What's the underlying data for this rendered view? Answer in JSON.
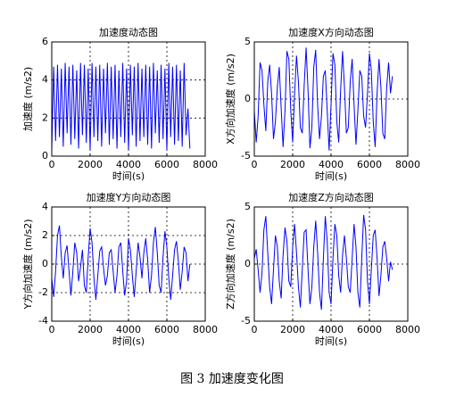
{
  "chart_data": [
    {
      "type": "line",
      "title": "加速度动态图",
      "xlabel": "时间(s)",
      "ylabel": "加速度 (m/s2)",
      "xlim": [
        0,
        8000
      ],
      "xticks": [
        0,
        2000,
        4000,
        6000,
        8000
      ],
      "ylim": [
        0,
        6
      ],
      "yticks": [
        0,
        2,
        4,
        6
      ],
      "grid": true,
      "color": "#0000ff",
      "x": [
        0,
        100,
        200,
        300,
        400,
        500,
        600,
        700,
        800,
        900,
        1000,
        1100,
        1200,
        1300,
        1400,
        1500,
        1600,
        1700,
        1800,
        1900,
        2000,
        2100,
        2200,
        2300,
        2400,
        2500,
        2600,
        2700,
        2800,
        2900,
        3000,
        3100,
        3200,
        3300,
        3400,
        3500,
        3600,
        3700,
        3800,
        3900,
        4000,
        4100,
        4200,
        4300,
        4400,
        4500,
        4600,
        4700,
        4800,
        4900,
        5000,
        5100,
        5200,
        5300,
        5400,
        5500,
        5600,
        5700,
        5800,
        5900,
        6000,
        6100,
        6200,
        6300,
        6400,
        6500,
        6600,
        6700,
        6800,
        6900,
        7000,
        7100,
        7200
      ],
      "values": [
        0.3,
        4.7,
        0.8,
        4.8,
        1.0,
        4.6,
        0.5,
        4.9,
        1.2,
        4.7,
        0.6,
        4.8,
        0.9,
        4.5,
        0.4,
        4.9,
        1.1,
        4.8,
        0.7,
        4.6,
        0.3,
        4.9,
        1.0,
        4.7,
        0.8,
        4.8,
        0.5,
        4.6,
        1.2,
        4.9,
        0.6,
        4.7,
        0.9,
        4.8,
        0.4,
        4.5,
        1.0,
        4.9,
        0.7,
        4.6,
        0.3,
        4.8,
        1.1,
        4.7,
        0.5,
        4.9,
        0.8,
        4.6,
        1.0,
        4.8,
        0.6,
        4.7,
        0.4,
        4.9,
        1.2,
        4.5,
        0.7,
        4.8,
        0.9,
        4.6,
        0.3,
        4.9,
        1.0,
        4.7,
        0.6,
        4.8,
        0.8,
        4.5,
        0.5,
        4.9,
        1.1,
        2.5,
        0.4
      ]
    },
    {
      "type": "line",
      "title": "加速度X方向动态图",
      "xlabel": "时间(s)",
      "ylabel": "X方向加速度 (m/s2)",
      "xlim": [
        0,
        8000
      ],
      "xticks": [
        0,
        2000,
        4000,
        6000,
        8000
      ],
      "ylim": [
        -5,
        5
      ],
      "yticks": [
        -5,
        0,
        5
      ],
      "grid": true,
      "color": "#0000ff",
      "x": [
        0,
        100,
        200,
        300,
        400,
        500,
        600,
        700,
        800,
        900,
        1000,
        1100,
        1200,
        1300,
        1400,
        1500,
        1600,
        1700,
        1800,
        1900,
        2000,
        2100,
        2200,
        2300,
        2400,
        2500,
        2600,
        2700,
        2800,
        2900,
        3000,
        3100,
        3200,
        3300,
        3400,
        3500,
        3600,
        3700,
        3800,
        3900,
        4000,
        4100,
        4200,
        4300,
        4400,
        4500,
        4600,
        4700,
        4800,
        4900,
        5000,
        5100,
        5200,
        5300,
        5400,
        5500,
        5600,
        5700,
        5800,
        5900,
        6000,
        6100,
        6200,
        6300,
        6400,
        6500,
        6600,
        6700,
        6800,
        6900,
        7000,
        7100,
        7200
      ],
      "values": [
        -1.0,
        -3.8,
        -1.5,
        3.2,
        2.5,
        -0.5,
        -2.8,
        1.5,
        3.0,
        0.5,
        -3.5,
        -2.0,
        1.0,
        2.8,
        -0.8,
        -4.2,
        -1.0,
        4.2,
        3.5,
        -1.0,
        -3.8,
        0.5,
        3.8,
        1.5,
        -2.5,
        -3.0,
        1.2,
        4.5,
        0.8,
        -4.3,
        -2.5,
        2.8,
        4.3,
        -0.5,
        -3.5,
        -1.5,
        2.0,
        2.5,
        -1.0,
        -4.5,
        -0.5,
        4.0,
        3.0,
        -2.0,
        -3.8,
        0.8,
        4.2,
        1.0,
        -3.0,
        -2.5,
        1.5,
        3.5,
        -0.5,
        -4.0,
        -1.0,
        2.5,
        2.0,
        -1.5,
        -2.5,
        0.5,
        4.0,
        2.5,
        -2.0,
        -4.2,
        0.5,
        3.5,
        1.0,
        -3.0,
        -3.5,
        1.0,
        3.2,
        0.5,
        2.0
      ]
    },
    {
      "type": "line",
      "title": "加速度Y方向动态图",
      "xlabel": "时间(s)",
      "ylabel": "Y方向加速度 (m/s2)",
      "xlim": [
        0,
        8000
      ],
      "xticks": [
        0,
        2000,
        4000,
        6000,
        8000
      ],
      "ylim": [
        -4,
        4
      ],
      "yticks": [
        -4,
        -2,
        0,
        2,
        4
      ],
      "grid": true,
      "color": "#0000ff",
      "x": [
        0,
        100,
        200,
        300,
        400,
        500,
        600,
        700,
        800,
        900,
        1000,
        1100,
        1200,
        1300,
        1400,
        1500,
        1600,
        1700,
        1800,
        1900,
        2000,
        2100,
        2200,
        2300,
        2400,
        2500,
        2600,
        2700,
        2800,
        2900,
        3000,
        3100,
        3200,
        3300,
        3400,
        3500,
        3600,
        3700,
        3800,
        3900,
        4000,
        4100,
        4200,
        4300,
        4400,
        4500,
        4600,
        4700,
        4800,
        4900,
        5000,
        5100,
        5200,
        5300,
        5400,
        5500,
        5600,
        5700,
        5800,
        5900,
        6000,
        6100,
        6200,
        6300,
        6400,
        6500,
        6600,
        6700,
        6800,
        6900,
        7000,
        7100,
        7200
      ],
      "values": [
        -1.0,
        -2.3,
        -0.5,
        2.0,
        2.7,
        0.5,
        -1.0,
        0.8,
        1.3,
        -0.5,
        -2.2,
        -0.5,
        1.5,
        0.8,
        -1.2,
        -0.2,
        1.0,
        -1.5,
        -2.0,
        0.5,
        2.5,
        1.5,
        -1.0,
        -2.5,
        -0.8,
        0.9,
        1.2,
        -0.3,
        -1.5,
        -0.8,
        0.8,
        1.0,
        -0.5,
        -2.0,
        -0.8,
        1.2,
        1.5,
        -0.5,
        -2.2,
        -1.2,
        1.8,
        1.0,
        -0.8,
        -2.3,
        -0.5,
        1.5,
        0.5,
        -1.0,
        0.8,
        1.8,
        0.3,
        -2.0,
        -0.8,
        1.5,
        2.6,
        0.8,
        -1.5,
        -2.0,
        0.5,
        2.3,
        1.2,
        -1.0,
        -2.5,
        -0.8,
        1.0,
        1.6,
        0.2,
        -1.8,
        -0.5,
        1.2,
        0.8,
        -1.2,
        0.0
      ]
    },
    {
      "type": "line",
      "title": "加速度Z方向动态图",
      "xlabel": "时间(s)",
      "ylabel": "Z方向加速度 (m/s2)",
      "xlim": [
        0,
        8000
      ],
      "xticks": [
        0,
        2000,
        4000,
        6000,
        8000
      ],
      "ylim": [
        -5,
        5
      ],
      "yticks": [
        -5,
        0,
        5
      ],
      "grid": true,
      "color": "#0000ff",
      "x": [
        0,
        100,
        200,
        300,
        400,
        500,
        600,
        700,
        800,
        900,
        1000,
        1100,
        1200,
        1300,
        1400,
        1500,
        1600,
        1700,
        1800,
        1900,
        2000,
        2100,
        2200,
        2300,
        2400,
        2500,
        2600,
        2700,
        2800,
        2900,
        3000,
        3100,
        3200,
        3300,
        3400,
        3500,
        3600,
        3700,
        3800,
        3900,
        4000,
        4100,
        4200,
        4300,
        4400,
        4500,
        4600,
        4700,
        4800,
        4900,
        5000,
        5100,
        5200,
        5300,
        5400,
        5500,
        5600,
        5700,
        5800,
        5900,
        6000,
        6100,
        6200,
        6300,
        6400,
        6500,
        6600,
        6700,
        6800,
        6900,
        7000,
        7100,
        7200
      ],
      "values": [
        0.5,
        1.3,
        -0.5,
        -2.5,
        -0.8,
        3.0,
        4.2,
        1.0,
        -2.0,
        -3.5,
        -0.5,
        2.5,
        1.5,
        -1.5,
        -3.0,
        0.8,
        3.2,
        2.0,
        -1.5,
        -2.0,
        1.5,
        3.5,
        1.0,
        -2.0,
        -3.8,
        -0.5,
        2.8,
        3.0,
        -0.5,
        -3.5,
        -2.0,
        1.5,
        3.8,
        1.0,
        -2.5,
        -4.0,
        0.5,
        4.2,
        2.0,
        -2.5,
        -3.5,
        0.5,
        3.5,
        2.5,
        -1.0,
        -2.5,
        0.8,
        2.5,
        0.5,
        -2.0,
        -2.5,
        0.5,
        3.5,
        1.5,
        -2.5,
        -3.8,
        0.5,
        4.3,
        3.0,
        -1.5,
        -3.5,
        -0.5,
        2.5,
        3.0,
        0.5,
        -2.8,
        -1.0,
        1.5,
        2.0,
        0.5,
        -1.5,
        0.2,
        -0.5
      ]
    }
  ],
  "caption": "图 3  加速度变化图"
}
